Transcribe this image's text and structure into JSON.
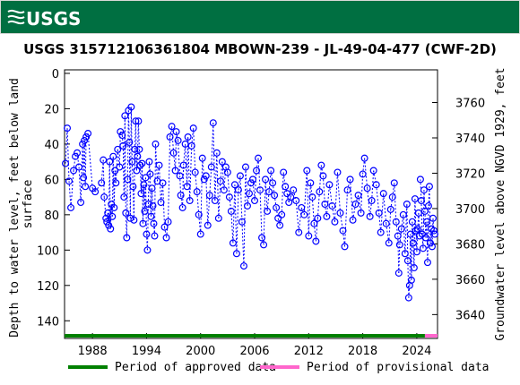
{
  "header": {
    "logo_text": "USGS",
    "brand_color": "#006f41"
  },
  "chart_data": {
    "type": "scatter",
    "title": "USGS 315712106361804 MBOWN-239 - JL-49-04-477 (CWF-2D)",
    "ylabel_left": [
      "Depth to water level, feet below land",
      "surface"
    ],
    "ylabel_right": "Groundwater level above NGVD 1929, feet",
    "x_ticks": [
      "1988",
      "1994",
      "2000",
      "2006",
      "2012",
      "2018",
      "2024"
    ],
    "y_left_ticks": [
      0,
      20,
      40,
      60,
      80,
      100,
      120,
      140
    ],
    "y_right_ticks": [
      3640,
      3660,
      3680,
      3700,
      3720,
      3740,
      3760
    ],
    "xlim": [
      1984.9,
      2026.3
    ],
    "ylim_left": [
      150,
      -2
    ],
    "ylim_right": [
      3626.5,
      3778.5
    ],
    "marker_color": "#0000ff",
    "series": [
      {
        "points": [
          [
            1985.0,
            51
          ],
          [
            1985.2,
            31
          ],
          [
            1985.4,
            61
          ],
          [
            1985.6,
            76
          ],
          [
            1985.9,
            55
          ],
          [
            1986.1,
            47
          ],
          [
            1986.3,
            45
          ],
          [
            1986.5,
            53
          ],
          [
            1986.7,
            73
          ],
          [
            1986.9,
            40
          ],
          [
            1987.0,
            59
          ],
          [
            1987.1,
            38
          ],
          [
            1987.2,
            64
          ],
          [
            1987.3,
            36
          ],
          [
            1987.5,
            34
          ],
          [
            1988.0,
            65
          ],
          [
            1988.3,
            67
          ],
          [
            1989.0,
            62
          ],
          [
            1989.2,
            49
          ],
          [
            1989.3,
            70
          ],
          [
            1989.5,
            82
          ],
          [
            1989.6,
            84
          ],
          [
            1989.7,
            79
          ],
          [
            1989.8,
            86
          ],
          [
            1989.9,
            50
          ],
          [
            1990.0,
            88
          ],
          [
            1990.1,
            74
          ],
          [
            1990.2,
            81
          ],
          [
            1990.3,
            47
          ],
          [
            1990.4,
            76
          ],
          [
            1990.5,
            55
          ],
          [
            1990.6,
            62
          ],
          [
            1990.8,
            43
          ],
          [
            1991.0,
            53
          ],
          [
            1991.1,
            33
          ],
          [
            1991.3,
            35
          ],
          [
            1991.4,
            41
          ],
          [
            1991.5,
            70
          ],
          [
            1991.6,
            24
          ],
          [
            1991.7,
            79
          ],
          [
            1991.8,
            93
          ],
          [
            1991.9,
            60
          ],
          [
            1992.0,
            21
          ],
          [
            1992.1,
            39
          ],
          [
            1992.2,
            82
          ],
          [
            1992.3,
            19
          ],
          [
            1992.4,
            50
          ],
          [
            1992.5,
            64
          ],
          [
            1992.6,
            83
          ],
          [
            1992.7,
            43
          ],
          [
            1992.8,
            27
          ],
          [
            1992.9,
            55
          ],
          [
            1993.0,
            47
          ],
          [
            1993.1,
            27
          ],
          [
            1993.2,
            43
          ],
          [
            1993.3,
            52
          ],
          [
            1993.4,
            68
          ],
          [
            1993.5,
            51
          ],
          [
            1993.6,
            85
          ],
          [
            1993.7,
            63
          ],
          [
            1993.8,
            78
          ],
          [
            1993.9,
            59
          ],
          [
            1994.0,
            91
          ],
          [
            1994.1,
            100
          ],
          [
            1994.2,
            74
          ],
          [
            1994.3,
            50
          ],
          [
            1994.4,
            57
          ],
          [
            1994.5,
            81
          ],
          [
            1994.6,
            65
          ],
          [
            1994.7,
            75
          ],
          [
            1994.8,
            85
          ],
          [
            1994.9,
            92
          ],
          [
            1995.0,
            40
          ],
          [
            1995.2,
            61
          ],
          [
            1995.4,
            52
          ],
          [
            1995.6,
            73
          ],
          [
            1995.8,
            62
          ],
          [
            1996.0,
            87
          ],
          [
            1996.2,
            93
          ],
          [
            1996.4,
            84
          ],
          [
            1996.6,
            36
          ],
          [
            1996.8,
            30
          ],
          [
            1997.0,
            45
          ],
          [
            1997.2,
            55
          ],
          [
            1997.3,
            33
          ],
          [
            1997.5,
            38
          ],
          [
            1997.7,
            58
          ],
          [
            1997.8,
            69
          ],
          [
            1998.0,
            76
          ],
          [
            1998.1,
            52
          ],
          [
            1998.3,
            40
          ],
          [
            1998.5,
            64
          ],
          [
            1998.6,
            36
          ],
          [
            1998.8,
            72
          ],
          [
            1999.0,
            41
          ],
          [
            1999.2,
            31
          ],
          [
            1999.4,
            56
          ],
          [
            1999.6,
            67
          ],
          [
            1999.8,
            80
          ],
          [
            2000.0,
            91
          ],
          [
            2000.2,
            48
          ],
          [
            2000.4,
            60
          ],
          [
            2000.6,
            58
          ],
          [
            2000.8,
            86
          ],
          [
            2001.0,
            69
          ],
          [
            2001.2,
            53
          ],
          [
            2001.4,
            28
          ],
          [
            2001.6,
            72
          ],
          [
            2001.8,
            45
          ],
          [
            2002.0,
            82
          ],
          [
            2002.2,
            61
          ],
          [
            2002.4,
            50
          ],
          [
            2002.6,
            66
          ],
          [
            2002.8,
            53
          ],
          [
            2003.0,
            56
          ],
          [
            2003.2,
            70
          ],
          [
            2003.4,
            78
          ],
          [
            2003.6,
            96
          ],
          [
            2003.8,
            63
          ],
          [
            2004.0,
            102
          ],
          [
            2004.2,
            66
          ],
          [
            2004.4,
            58
          ],
          [
            2004.6,
            84
          ],
          [
            2004.8,
            109
          ],
          [
            2005.0,
            53
          ],
          [
            2005.2,
            75
          ],
          [
            2005.4,
            68
          ],
          [
            2005.6,
            62
          ],
          [
            2005.8,
            60
          ],
          [
            2006.0,
            72
          ],
          [
            2006.2,
            55
          ],
          [
            2006.4,
            48
          ],
          [
            2006.6,
            66
          ],
          [
            2006.8,
            93
          ],
          [
            2007.0,
            97
          ],
          [
            2007.2,
            60
          ],
          [
            2007.4,
            78
          ],
          [
            2007.6,
            67
          ],
          [
            2007.8,
            55
          ],
          [
            2008.0,
            62
          ],
          [
            2008.2,
            69
          ],
          [
            2008.4,
            76
          ],
          [
            2008.6,
            82
          ],
          [
            2008.8,
            86
          ],
          [
            2009.0,
            80
          ],
          [
            2009.2,
            56
          ],
          [
            2009.4,
            64
          ],
          [
            2009.6,
            68
          ],
          [
            2009.8,
            73
          ],
          [
            2010.0,
            70
          ],
          [
            2010.3,
            66
          ],
          [
            2010.6,
            72
          ],
          [
            2010.9,
            90
          ],
          [
            2011.2,
            76
          ],
          [
            2011.5,
            80
          ],
          [
            2011.8,
            55
          ],
          [
            2012.0,
            92
          ],
          [
            2012.2,
            62
          ],
          [
            2012.4,
            70
          ],
          [
            2012.6,
            85
          ],
          [
            2012.8,
            95
          ],
          [
            2013.0,
            82
          ],
          [
            2013.2,
            67
          ],
          [
            2013.4,
            52
          ],
          [
            2013.6,
            58
          ],
          [
            2013.8,
            74
          ],
          [
            2014.0,
            81
          ],
          [
            2014.3,
            63
          ],
          [
            2014.6,
            75
          ],
          [
            2014.9,
            84
          ],
          [
            2015.2,
            56
          ],
          [
            2015.5,
            79
          ],
          [
            2015.8,
            89
          ],
          [
            2016.0,
            98
          ],
          [
            2016.3,
            66
          ],
          [
            2016.6,
            60
          ],
          [
            2016.9,
            83
          ],
          [
            2017.2,
            74
          ],
          [
            2017.5,
            69
          ],
          [
            2017.8,
            79
          ],
          [
            2018.0,
            57
          ],
          [
            2018.2,
            48
          ],
          [
            2018.5,
            65
          ],
          [
            2018.8,
            81
          ],
          [
            2019.0,
            72
          ],
          [
            2019.2,
            55
          ],
          [
            2019.5,
            63
          ],
          [
            2019.8,
            79
          ],
          [
            2020.0,
            90
          ],
          [
            2020.3,
            68
          ],
          [
            2020.6,
            85
          ],
          [
            2020.9,
            96
          ],
          [
            2021.1,
            77
          ],
          [
            2021.3,
            70
          ],
          [
            2021.5,
            62
          ],
          [
            2021.7,
            84
          ],
          [
            2021.9,
            92
          ],
          [
            2022.0,
            113
          ],
          [
            2022.1,
            97
          ],
          [
            2022.3,
            88
          ],
          [
            2022.5,
            80
          ],
          [
            2022.7,
            102
          ],
          [
            2022.9,
            74
          ],
          [
            2023.0,
            106
          ],
          [
            2023.1,
            127
          ],
          [
            2023.2,
            120
          ],
          [
            2023.3,
            91
          ],
          [
            2023.4,
            117
          ],
          [
            2023.5,
            84
          ],
          [
            2023.6,
            96
          ],
          [
            2023.7,
            110
          ],
          [
            2023.8,
            71
          ],
          [
            2023.9,
            89
          ],
          [
            2024.0,
            101
          ],
          [
            2024.1,
            88
          ],
          [
            2024.2,
            79
          ],
          [
            2024.3,
            92
          ]
        ]
      },
      {
        "points": [
          [
            2024.4,
            60
          ],
          [
            2024.5,
            72
          ],
          [
            2024.6,
            91
          ],
          [
            2024.7,
            99
          ],
          [
            2024.8,
            66
          ],
          [
            2024.9,
            78
          ],
          [
            2025.0,
            93
          ],
          [
            2025.1,
            84
          ],
          [
            2025.2,
            107
          ],
          [
            2025.3,
            75
          ],
          [
            2025.4,
            64
          ],
          [
            2025.5,
            96
          ],
          [
            2025.6,
            88
          ],
          [
            2025.7,
            98
          ],
          [
            2025.8,
            82
          ],
          [
            2025.9,
            89
          ],
          [
            2026.0,
            91
          ]
        ]
      }
    ],
    "approval_bars": [
      {
        "label": "Period of approved data",
        "color": "#008000",
        "range": [
          1984.9,
          2024.9
        ]
      },
      {
        "label": "Period of provisional data",
        "color": "#ff66cc",
        "range": [
          2024.9,
          2026.3
        ]
      }
    ]
  }
}
